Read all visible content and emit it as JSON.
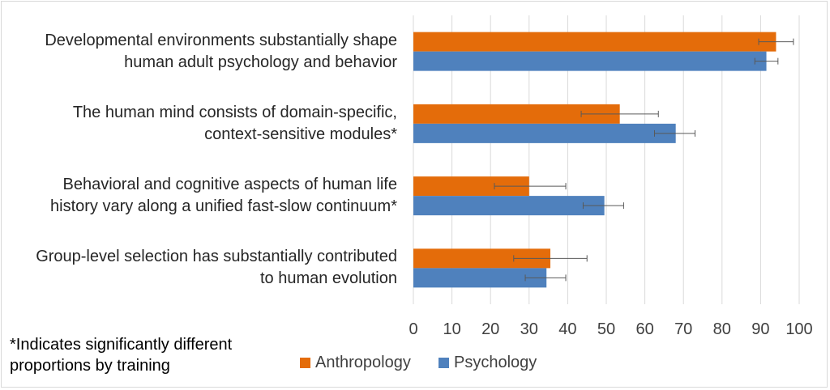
{
  "chart_data": {
    "type": "bar",
    "orientation": "horizontal",
    "categories": [
      "Developmental environments substantially shape human adult psychology and behavior",
      "The human mind consists of domain-specific, context-sensitive modules*",
      "Behavioral and cognitive aspects of human life history vary along a unified fast-slow continuum*",
      "Group-level selection has substantially contributed to human evolution"
    ],
    "category_lines": [
      [
        "Developmental environments substantially shape",
        "human adult psychology and behavior"
      ],
      [
        "The human mind consists of domain-specific,",
        "context-sensitive modules*"
      ],
      [
        "Behavioral and cognitive aspects of human life",
        "history vary along a unified fast-slow continuum*"
      ],
      [
        "Group-level selection has substantially contributed",
        "to human evolution"
      ]
    ],
    "series": [
      {
        "name": "Anthropology",
        "color": "#e46c0a",
        "values": [
          94,
          53.5,
          30,
          35.5
        ],
        "error_low": [
          89.5,
          43.5,
          21,
          26
        ],
        "error_high": [
          98.5,
          63.5,
          39.5,
          45
        ]
      },
      {
        "name": "Psychology",
        "color": "#4f81bd",
        "values": [
          91.5,
          68,
          49.5,
          34.5
        ],
        "error_low": [
          88.5,
          62.5,
          44,
          29
        ],
        "error_high": [
          94.5,
          73,
          54.5,
          39.5
        ]
      }
    ],
    "xlim": [
      0,
      100
    ],
    "xticks": [
      "0",
      "10",
      "20",
      "30",
      "40",
      "50",
      "60",
      "70",
      "80",
      "90",
      "100"
    ],
    "grid": true,
    "legend_position": "bottom",
    "footnote": "*Indicates significantly different proportions by training"
  }
}
